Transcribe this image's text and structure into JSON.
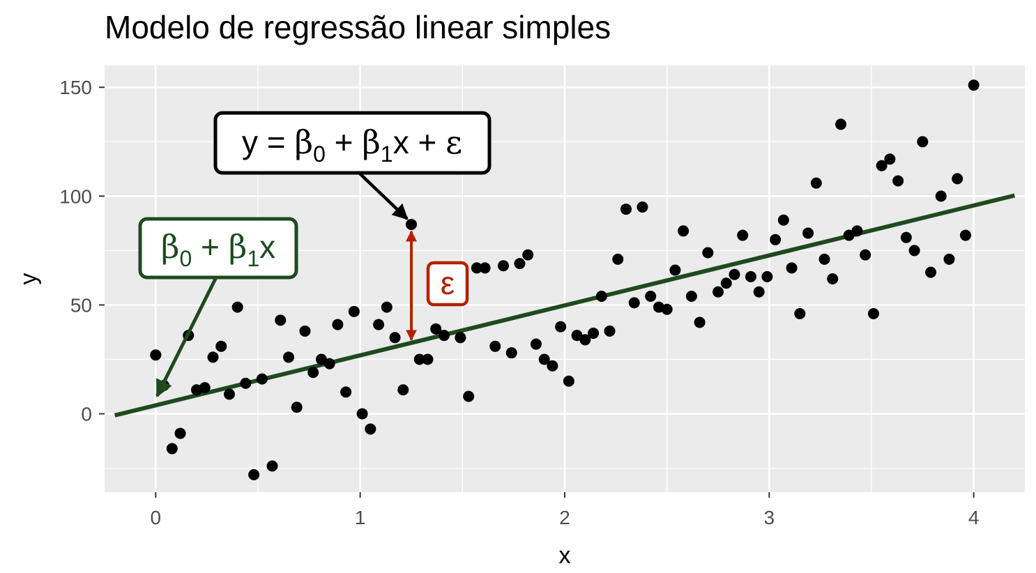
{
  "title": "Modelo de regressão linear simples",
  "chart_data": {
    "type": "scatter",
    "title": "Modelo de regressão linear simples",
    "xlabel": "x",
    "ylabel": "y",
    "xlim": [
      -0.25,
      4.25
    ],
    "ylim": [
      -36,
      160
    ],
    "x_ticks": [
      0,
      1,
      2,
      3,
      4
    ],
    "y_ticks": [
      0,
      50,
      100,
      150
    ],
    "x_tick_labels": [
      "0",
      "1",
      "2",
      "3",
      "4"
    ],
    "y_tick_labels": [
      "0",
      "50",
      "100",
      "150"
    ],
    "grid": true,
    "background": "#ebebeb",
    "point_color": "#000000",
    "line_color": "#1e4a1e",
    "epsilon_color": "#b22200",
    "regression_line": {
      "x": [
        -0.2,
        4.2
      ],
      "y": [
        -0.7,
        100.3
      ]
    },
    "points": [
      [
        0.0,
        27
      ],
      [
        0.04,
        13
      ],
      [
        0.08,
        -16
      ],
      [
        0.12,
        -9
      ],
      [
        0.16,
        36
      ],
      [
        0.2,
        11
      ],
      [
        0.24,
        12
      ],
      [
        0.28,
        26
      ],
      [
        0.32,
        31
      ],
      [
        0.36,
        9
      ],
      [
        0.4,
        49
      ],
      [
        0.44,
        14
      ],
      [
        0.48,
        -28
      ],
      [
        0.52,
        16
      ],
      [
        0.57,
        -24
      ],
      [
        0.61,
        43
      ],
      [
        0.65,
        26
      ],
      [
        0.69,
        3
      ],
      [
        0.73,
        38
      ],
      [
        0.77,
        19
      ],
      [
        0.81,
        25
      ],
      [
        0.85,
        23
      ],
      [
        0.89,
        41
      ],
      [
        0.93,
        10
      ],
      [
        0.97,
        47
      ],
      [
        1.01,
        0
      ],
      [
        1.05,
        -7
      ],
      [
        1.09,
        41
      ],
      [
        1.13,
        49
      ],
      [
        1.17,
        35
      ],
      [
        1.21,
        11
      ],
      [
        1.25,
        87
      ],
      [
        1.29,
        25
      ],
      [
        1.33,
        25
      ],
      [
        1.37,
        39
      ],
      [
        1.41,
        36
      ],
      [
        1.49,
        35
      ],
      [
        1.53,
        8
      ],
      [
        1.57,
        67
      ],
      [
        1.61,
        67
      ],
      [
        1.66,
        31
      ],
      [
        1.7,
        68
      ],
      [
        1.74,
        28
      ],
      [
        1.78,
        69
      ],
      [
        1.82,
        73
      ],
      [
        1.86,
        32
      ],
      [
        1.9,
        25
      ],
      [
        1.94,
        22
      ],
      [
        1.98,
        40
      ],
      [
        2.02,
        15
      ],
      [
        2.06,
        36
      ],
      [
        2.1,
        34
      ],
      [
        2.14,
        37
      ],
      [
        2.18,
        54
      ],
      [
        2.22,
        38
      ],
      [
        2.26,
        71
      ],
      [
        2.3,
        94
      ],
      [
        2.34,
        51
      ],
      [
        2.38,
        95
      ],
      [
        2.42,
        54
      ],
      [
        2.46,
        49
      ],
      [
        2.5,
        48
      ],
      [
        2.54,
        66
      ],
      [
        2.58,
        84
      ],
      [
        2.62,
        54
      ],
      [
        2.66,
        42
      ],
      [
        2.7,
        74
      ],
      [
        2.75,
        56
      ],
      [
        2.79,
        60
      ],
      [
        2.83,
        64
      ],
      [
        2.87,
        82
      ],
      [
        2.91,
        63
      ],
      [
        2.95,
        56
      ],
      [
        2.99,
        63
      ],
      [
        3.03,
        80
      ],
      [
        3.07,
        89
      ],
      [
        3.11,
        67
      ],
      [
        3.15,
        46
      ],
      [
        3.19,
        83
      ],
      [
        3.23,
        106
      ],
      [
        3.27,
        71
      ],
      [
        3.31,
        62
      ],
      [
        3.35,
        133
      ],
      [
        3.39,
        82
      ],
      [
        3.43,
        84
      ],
      [
        3.47,
        73
      ],
      [
        3.51,
        46
      ],
      [
        3.55,
        114
      ],
      [
        3.59,
        117
      ],
      [
        3.63,
        107
      ],
      [
        3.67,
        81
      ],
      [
        3.71,
        75
      ],
      [
        3.75,
        125
      ],
      [
        3.79,
        65
      ],
      [
        3.84,
        100
      ],
      [
        3.88,
        71
      ],
      [
        3.92,
        108
      ],
      [
        3.96,
        82
      ],
      [
        4.0,
        151
      ]
    ],
    "annotations": {
      "model_equation": {
        "parts": [
          "y",
          " = ",
          "β",
          "0",
          " + ",
          "β",
          "1",
          "x",
          " + ",
          "ε"
        ],
        "arrow_to": [
          1.25,
          87
        ]
      },
      "line_label": {
        "parts": [
          "β",
          "0",
          " + ",
          "β",
          "1",
          "x"
        ],
        "arrow_to": [
          0.0,
          5
        ]
      },
      "error_label": {
        "text": "ε",
        "from": [
          1.25,
          87
        ],
        "to": [
          1.25,
          32
        ]
      }
    }
  }
}
